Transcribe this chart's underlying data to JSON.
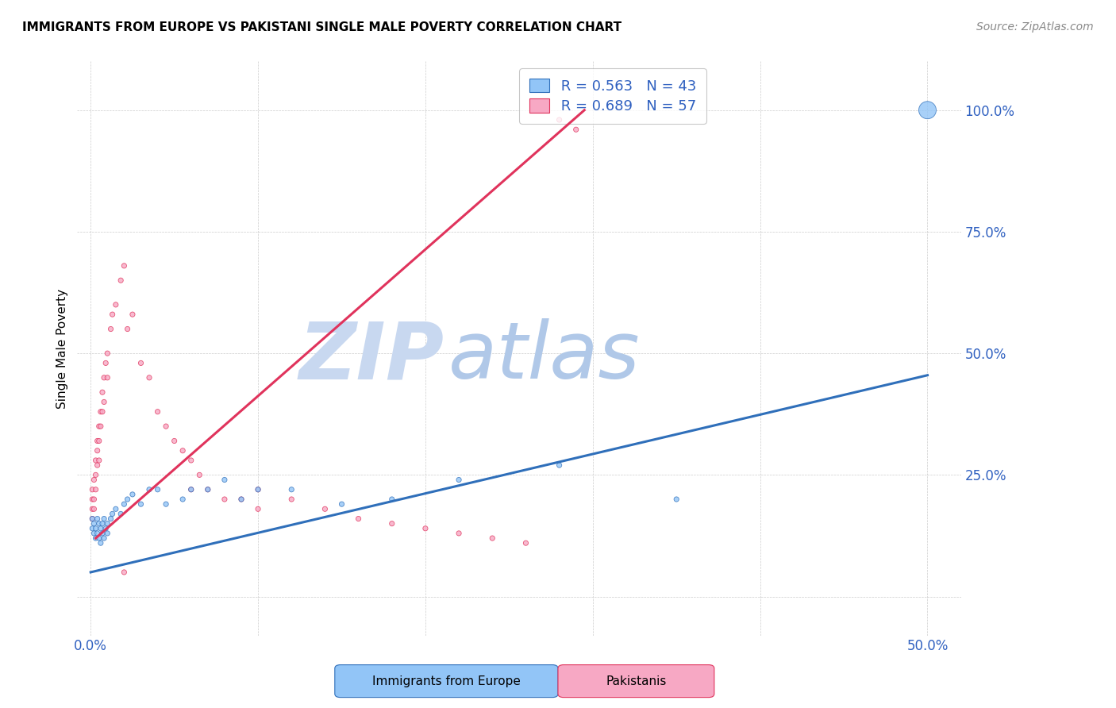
{
  "title": "IMMIGRANTS FROM EUROPE VS PAKISTANI SINGLE MALE POVERTY CORRELATION CHART",
  "source": "Source: ZipAtlas.com",
  "ylabel": "Single Male Poverty",
  "yticks": [
    "",
    "25.0%",
    "50.0%",
    "75.0%",
    "100.0%"
  ],
  "ytick_vals": [
    0.0,
    0.25,
    0.5,
    0.75,
    1.0
  ],
  "xticks": [
    0.0,
    0.1,
    0.2,
    0.3,
    0.4,
    0.5
  ],
  "xticklabels": [
    "0.0%",
    "",
    "",
    "",
    "",
    "50.0%"
  ],
  "legend_label1": "Immigrants from Europe",
  "legend_label2": "Pakistanis",
  "legend_R1": "R = 0.563",
  "legend_N1": "N = 43",
  "legend_R2": "R = 0.689",
  "legend_N2": "N = 57",
  "color_europe": "#92c5f7",
  "color_pakistan": "#f7a8c4",
  "color_europe_line": "#2f6fba",
  "color_pakistan_line": "#e0335c",
  "color_text_blue": "#2f60c0",
  "watermark_zip_color": "#c8d8f0",
  "watermark_atlas_color": "#b0c8e8",
  "xlim": [
    -0.008,
    0.52
  ],
  "ylim": [
    -0.08,
    1.1
  ],
  "eu_line_x": [
    0.0,
    0.5
  ],
  "eu_line_y": [
    0.05,
    0.455
  ],
  "pk_line_x": [
    0.003,
    0.295
  ],
  "pk_line_y": [
    0.12,
    1.0
  ],
  "europe_x": [
    0.001,
    0.001,
    0.002,
    0.002,
    0.003,
    0.003,
    0.004,
    0.004,
    0.005,
    0.005,
    0.006,
    0.006,
    0.007,
    0.007,
    0.008,
    0.008,
    0.009,
    0.01,
    0.01,
    0.012,
    0.013,
    0.015,
    0.018,
    0.02,
    0.022,
    0.025,
    0.03,
    0.035,
    0.04,
    0.045,
    0.055,
    0.06,
    0.07,
    0.08,
    0.09,
    0.1,
    0.12,
    0.15,
    0.18,
    0.22,
    0.28,
    0.35,
    0.5
  ],
  "europe_y": [
    0.16,
    0.14,
    0.15,
    0.13,
    0.14,
    0.12,
    0.16,
    0.13,
    0.15,
    0.12,
    0.14,
    0.11,
    0.15,
    0.13,
    0.16,
    0.12,
    0.14,
    0.15,
    0.13,
    0.16,
    0.17,
    0.18,
    0.17,
    0.19,
    0.2,
    0.21,
    0.19,
    0.22,
    0.22,
    0.19,
    0.2,
    0.22,
    0.22,
    0.24,
    0.2,
    0.22,
    0.22,
    0.19,
    0.2,
    0.24,
    0.27,
    0.2,
    1.0
  ],
  "europe_sizes": [
    20,
    20,
    20,
    20,
    20,
    20,
    20,
    20,
    20,
    20,
    20,
    20,
    20,
    20,
    20,
    20,
    20,
    20,
    20,
    20,
    20,
    20,
    20,
    20,
    20,
    20,
    20,
    20,
    20,
    20,
    20,
    20,
    20,
    20,
    20,
    20,
    20,
    20,
    20,
    20,
    20,
    20,
    250
  ],
  "pakistan_x": [
    0.001,
    0.001,
    0.001,
    0.001,
    0.002,
    0.002,
    0.002,
    0.003,
    0.003,
    0.003,
    0.004,
    0.004,
    0.004,
    0.005,
    0.005,
    0.005,
    0.006,
    0.006,
    0.007,
    0.007,
    0.008,
    0.008,
    0.009,
    0.01,
    0.01,
    0.012,
    0.013,
    0.015,
    0.018,
    0.02,
    0.022,
    0.025,
    0.03,
    0.035,
    0.04,
    0.045,
    0.05,
    0.055,
    0.06,
    0.065,
    0.07,
    0.08,
    0.09,
    0.1,
    0.12,
    0.14,
    0.16,
    0.18,
    0.2,
    0.22,
    0.24,
    0.26,
    0.28,
    0.29,
    0.1,
    0.02,
    0.06
  ],
  "pakistan_y": [
    0.2,
    0.22,
    0.18,
    0.16,
    0.24,
    0.2,
    0.18,
    0.28,
    0.25,
    0.22,
    0.32,
    0.3,
    0.27,
    0.35,
    0.32,
    0.28,
    0.38,
    0.35,
    0.42,
    0.38,
    0.45,
    0.4,
    0.48,
    0.5,
    0.45,
    0.55,
    0.58,
    0.6,
    0.65,
    0.68,
    0.55,
    0.58,
    0.48,
    0.45,
    0.38,
    0.35,
    0.32,
    0.3,
    0.28,
    0.25,
    0.22,
    0.2,
    0.2,
    0.18,
    0.2,
    0.18,
    0.16,
    0.15,
    0.14,
    0.13,
    0.12,
    0.11,
    0.98,
    0.96,
    0.22,
    0.05,
    0.22
  ],
  "pakistan_sizes": [
    20,
    20,
    20,
    20,
    20,
    20,
    20,
    20,
    20,
    20,
    20,
    20,
    20,
    20,
    20,
    20,
    20,
    20,
    20,
    20,
    20,
    20,
    20,
    20,
    20,
    20,
    20,
    20,
    20,
    20,
    20,
    20,
    20,
    20,
    20,
    20,
    20,
    20,
    20,
    20,
    20,
    20,
    20,
    20,
    20,
    20,
    20,
    20,
    20,
    20,
    20,
    20,
    20,
    20,
    20,
    20,
    20
  ]
}
